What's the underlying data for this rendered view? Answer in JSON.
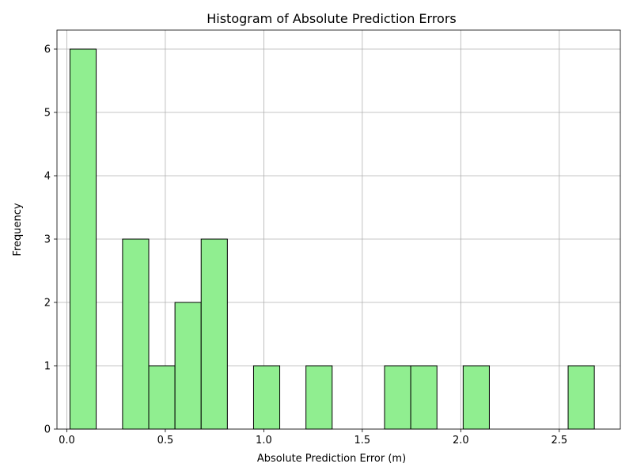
{
  "chart_data": {
    "type": "bar",
    "subtype": "histogram",
    "title": "Histogram of Absolute Prediction Errors",
    "xlabel": "Absolute Prediction Error (m)",
    "ylabel": "Frequency",
    "xlim": [
      -0.05,
      2.81
    ],
    "ylim": [
      0,
      6.3
    ],
    "xticks": [
      0.0,
      0.5,
      1.0,
      1.5,
      2.0,
      2.5
    ],
    "xtick_labels": [
      "0.0",
      "0.5",
      "1.0",
      "1.5",
      "2.0",
      "2.5"
    ],
    "yticks": [
      0,
      1,
      2,
      3,
      4,
      5,
      6
    ],
    "ytick_labels": [
      "0",
      "1",
      "2",
      "3",
      "4",
      "5",
      "6"
    ],
    "grid": true,
    "bar_color": "#90ee90",
    "edge_color": "#000000",
    "bins": [
      {
        "start": 0.016,
        "end": 0.149,
        "count": 6
      },
      {
        "start": 0.283,
        "end": 0.416,
        "count": 3
      },
      {
        "start": 0.416,
        "end": 0.549,
        "count": 1
      },
      {
        "start": 0.549,
        "end": 0.682,
        "count": 2
      },
      {
        "start": 0.682,
        "end": 0.815,
        "count": 3
      },
      {
        "start": 0.948,
        "end": 1.081,
        "count": 1
      },
      {
        "start": 1.214,
        "end": 1.347,
        "count": 1
      },
      {
        "start": 1.613,
        "end": 1.746,
        "count": 1
      },
      {
        "start": 1.746,
        "end": 1.879,
        "count": 1
      },
      {
        "start": 2.012,
        "end": 2.145,
        "count": 1
      },
      {
        "start": 2.545,
        "end": 2.678,
        "count": 1
      }
    ]
  }
}
